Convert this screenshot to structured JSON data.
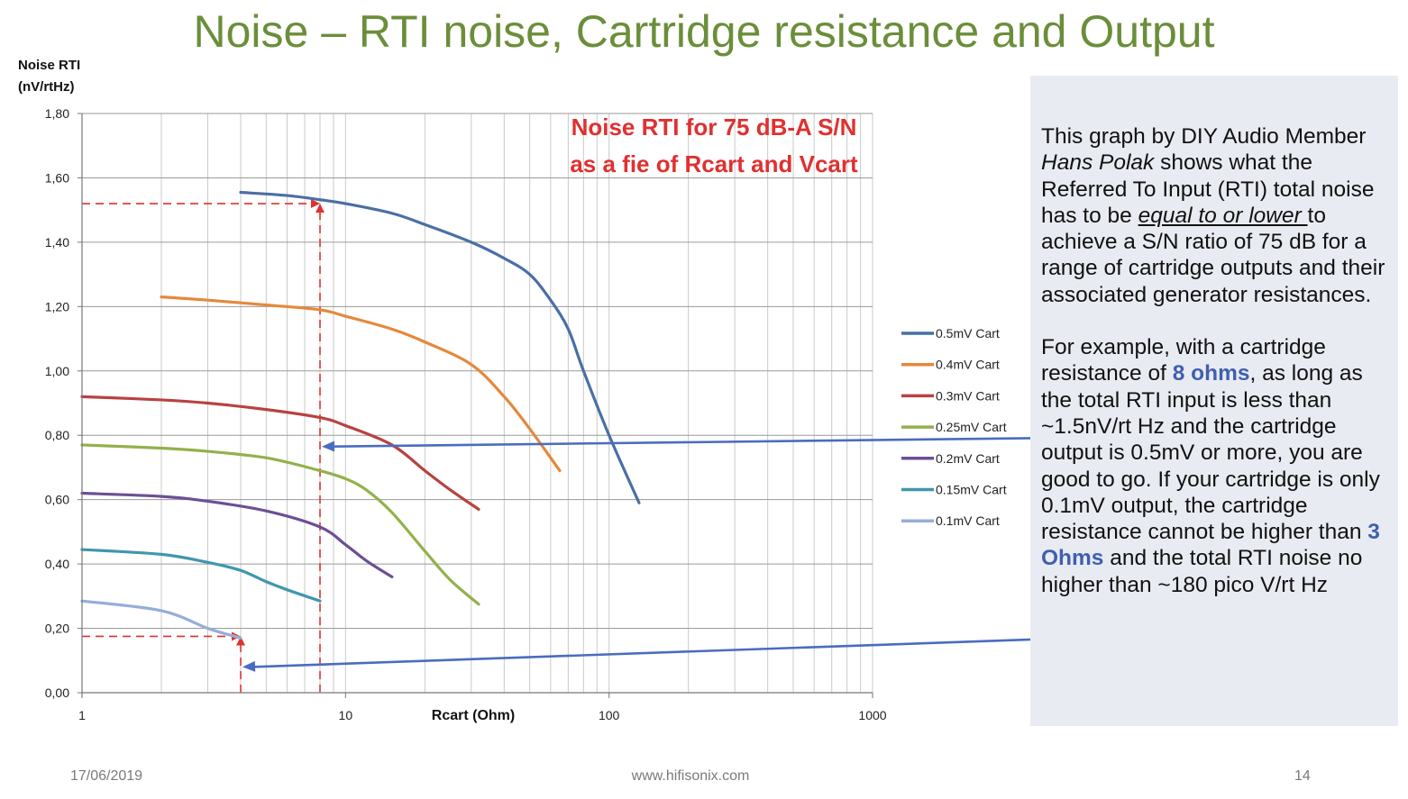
{
  "slide": {
    "title": "Noise – RTI noise, Cartridge resistance and Output",
    "footer_date": "17/06/2019",
    "footer_url": "www.hifisonix.com",
    "page_number": "14"
  },
  "panel": {
    "p1_a": "This graph by DIY Audio Member ",
    "p1_name": "Hans Polak",
    "p1_b": " shows what the Referred To Input (RTI) total noise has to be ",
    "p1_u": "equal to or lower ",
    "p1_c": "to achieve a S/N ratio of 75 dB for a range of cartridge outputs and their associated generator resistances.",
    "p2_a": "For example, with a cartridge resistance of ",
    "p2_h1": "8 ohms",
    "p2_b": ", as long as the total RTI input is less than ~1.5nV/rt Hz and the cartridge output is 0.5mV or more, you are good to go.  If your cartridge is only 0.1mV output, the cartridge resistance cannot be higher than ",
    "p2_h2": "3 Ohms",
    "p2_c": " and the total RTI noise no higher than ~180 pico V/rt Hz"
  },
  "colors": {
    "title": "#6b8e3a",
    "annotation": "#e03030",
    "arrow": "#4a6cc0",
    "panel_bg": "#e9ebf2"
  },
  "chart_data": {
    "type": "line",
    "title": "Noise RTI for 75 dB-A S/N as a fie of Rcart and Vcart",
    "title_line1": "Noise RTI for 75 dB-A S/N",
    "title_line2": "as a fie of Rcart and Vcart",
    "ylabel_line1": "Noise RTI",
    "ylabel_line2": "(nV/rtHz)",
    "xlabel": "Rcart (Ohm)",
    "x_scale": "log",
    "xlim": [
      1,
      1000
    ],
    "ylim": [
      0,
      1.8
    ],
    "x_ticks": [
      {
        "value": 1,
        "label": "1"
      },
      {
        "value": 10,
        "label": "10"
      },
      {
        "value": 100,
        "label": "100"
      },
      {
        "value": 1000,
        "label": "1000"
      }
    ],
    "y_ticks": [
      {
        "value": 0,
        "label": "0,00"
      },
      {
        "value": 0.2,
        "label": "0,20"
      },
      {
        "value": 0.4,
        "label": "0,40"
      },
      {
        "value": 0.6,
        "label": "0,60"
      },
      {
        "value": 0.8,
        "label": "0,80"
      },
      {
        "value": 1.0,
        "label": "1,00"
      },
      {
        "value": 1.2,
        "label": "1,20"
      },
      {
        "value": 1.4,
        "label": "1,40"
      },
      {
        "value": 1.6,
        "label": "1,60"
      },
      {
        "value": 1.8,
        "label": "1,80"
      }
    ],
    "grid": true,
    "legend_position": "right",
    "series": [
      {
        "name": "0.5mV Cart",
        "color": "#4a6fa5",
        "x": [
          4,
          6,
          8,
          10,
          15,
          20,
          30,
          40,
          50,
          60,
          70,
          80,
          100,
          130
        ],
        "y": [
          1.555,
          1.545,
          1.532,
          1.52,
          1.49,
          1.455,
          1.4,
          1.35,
          1.3,
          1.22,
          1.13,
          1.0,
          0.8,
          0.59
        ]
      },
      {
        "name": "0.4mV Cart",
        "color": "#e5883a",
        "x": [
          2,
          3,
          5,
          8,
          10,
          15,
          20,
          30,
          40,
          50,
          65
        ],
        "y": [
          1.23,
          1.22,
          1.205,
          1.19,
          1.17,
          1.13,
          1.09,
          1.02,
          0.92,
          0.82,
          0.69
        ]
      },
      {
        "name": "0.3mV Cart",
        "color": "#b84240",
        "x": [
          1,
          2,
          3,
          5,
          8,
          10,
          15,
          20,
          25,
          32
        ],
        "y": [
          0.92,
          0.91,
          0.9,
          0.88,
          0.855,
          0.83,
          0.77,
          0.69,
          0.63,
          0.57
        ]
      },
      {
        "name": "0.25mV Cart",
        "color": "#93b14a",
        "x": [
          1,
          2,
          3,
          5,
          8,
          10,
          12,
          15,
          20,
          25,
          32
        ],
        "y": [
          0.77,
          0.76,
          0.75,
          0.73,
          0.69,
          0.665,
          0.63,
          0.56,
          0.44,
          0.35,
          0.275
        ]
      },
      {
        "name": "0.2mV Cart",
        "color": "#6c4f96",
        "x": [
          1,
          2,
          3,
          5,
          8,
          10,
          12,
          15
        ],
        "y": [
          0.62,
          0.61,
          0.595,
          0.565,
          0.515,
          0.46,
          0.41,
          0.36
        ]
      },
      {
        "name": "0.15mV Cart",
        "color": "#3f97ad",
        "x": [
          1,
          2,
          3,
          4,
          5,
          6,
          8
        ],
        "y": [
          0.445,
          0.43,
          0.405,
          0.38,
          0.345,
          0.32,
          0.285
        ]
      },
      {
        "name": "0.1mV Cart",
        "color": "#94aed8",
        "x": [
          1,
          2,
          3,
          4
        ],
        "y": [
          0.285,
          0.255,
          0.2,
          0.17
        ]
      }
    ],
    "annotations": [
      {
        "type": "dashed-guide",
        "x": 8,
        "y": 1.52
      },
      {
        "type": "dashed-guide",
        "x": 4,
        "y": 0.175
      }
    ]
  }
}
